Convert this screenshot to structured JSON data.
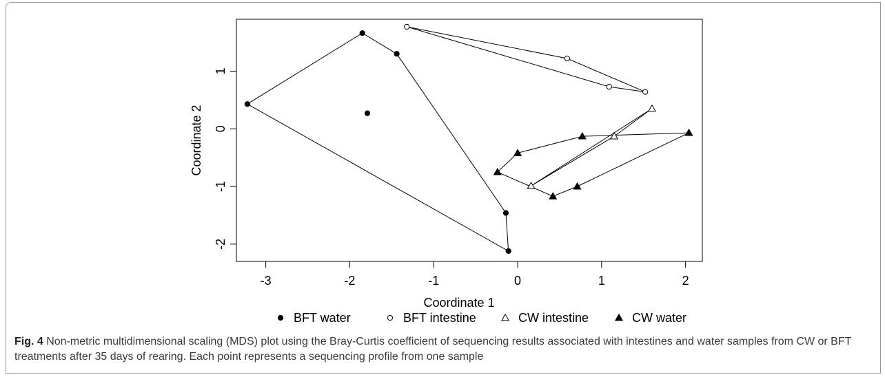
{
  "chart_data": {
    "type": "scatter",
    "xlabel": "Coordinate 1",
    "ylabel": "Coordinate 2",
    "xlim": [
      -3.35,
      2.2
    ],
    "ylim": [
      -2.3,
      1.9
    ],
    "x_ticks": [
      "-3",
      "-2",
      "-1",
      "0",
      "1",
      "2"
    ],
    "y_ticks": [
      "-2",
      "-1",
      "0",
      "1"
    ],
    "legend_position": "bottom",
    "series": [
      {
        "name": "BFT water",
        "marker": "filled-circle",
        "color": "#000000",
        "points": [
          [
            -1.85,
            1.66
          ],
          [
            -1.44,
            1.3
          ],
          [
            -3.22,
            0.43
          ],
          [
            -1.79,
            0.27
          ],
          [
            -0.14,
            -1.46
          ],
          [
            -0.11,
            -2.12
          ]
        ],
        "hull": [
          [
            -3.22,
            0.43
          ],
          [
            -1.85,
            1.66
          ],
          [
            -1.44,
            1.3
          ],
          [
            -0.14,
            -1.46
          ],
          [
            -0.11,
            -2.12
          ]
        ]
      },
      {
        "name": "BFT intestine",
        "marker": "open-circle",
        "color": "#000000",
        "points": [
          [
            -1.32,
            1.77
          ],
          [
            0.59,
            1.22
          ],
          [
            1.09,
            0.73
          ],
          [
            1.52,
            0.64
          ]
        ],
        "hull": [
          [
            -1.32,
            1.77
          ],
          [
            0.59,
            1.22
          ],
          [
            1.52,
            0.64
          ],
          [
            1.09,
            0.73
          ]
        ]
      },
      {
        "name": "CW intestine",
        "marker": "open-triangle",
        "color": "#000000",
        "points": [
          [
            1.6,
            0.35
          ],
          [
            1.15,
            -0.13
          ],
          [
            0.16,
            -0.99
          ]
        ],
        "hull": [
          [
            0.16,
            -0.99
          ],
          [
            1.6,
            0.35
          ],
          [
            1.15,
            -0.13
          ]
        ]
      },
      {
        "name": "CW water",
        "marker": "filled-triangle",
        "color": "#000000",
        "points": [
          [
            2.04,
            -0.07
          ],
          [
            0.77,
            -0.13
          ],
          [
            0.0,
            -0.42
          ],
          [
            -0.24,
            -0.75
          ],
          [
            0.42,
            -1.17
          ],
          [
            0.71,
            -1.0
          ]
        ],
        "hull": [
          [
            -0.24,
            -0.75
          ],
          [
            0.0,
            -0.42
          ],
          [
            0.77,
            -0.13
          ],
          [
            2.04,
            -0.07
          ],
          [
            0.71,
            -1.0
          ],
          [
            0.42,
            -1.17
          ]
        ]
      }
    ]
  },
  "caption": {
    "label": "Fig. 4",
    "text": " Non-metric multidimensional scaling (MDS) plot using the Bray-Curtis coefficient of sequencing results associated with intestines and water samples from CW or BFT treatments after 35 days of rearing. Each point represents a sequencing profile from one sample"
  }
}
